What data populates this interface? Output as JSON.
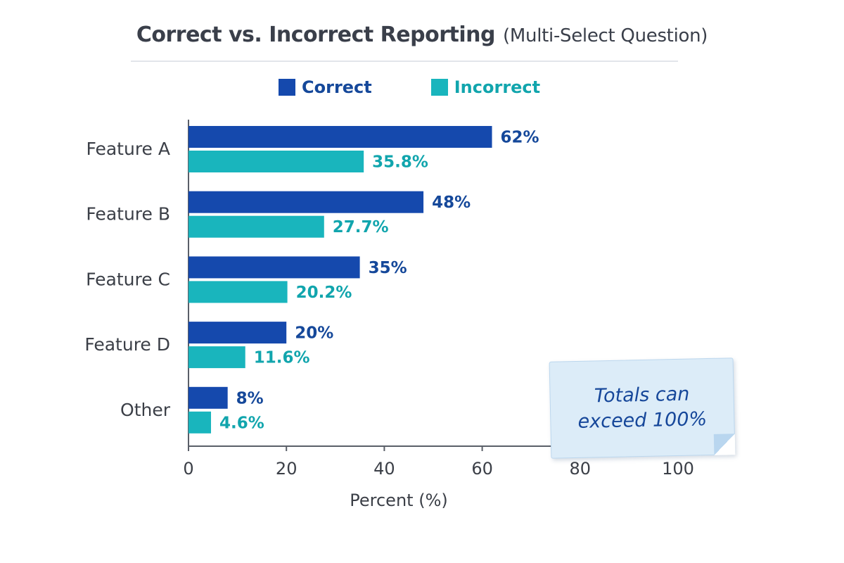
{
  "chart_data": {
    "type": "bar",
    "orientation": "horizontal",
    "title": "Correct vs. Incorrect Reporting",
    "subtitle": "(Multi-Select Question)",
    "xlabel": "Percent (%)",
    "ylabel": "",
    "xlim": [
      0,
      100
    ],
    "x_ticks": [
      "0",
      "20",
      "40",
      "60",
      "80",
      "100"
    ],
    "legend_position": "top",
    "grid": false,
    "categories": [
      "Feature A",
      "Feature B",
      "Feature C",
      "Feature D",
      "Other"
    ],
    "series": [
      {
        "name": "Correct",
        "color": "#1549ad",
        "values": [
          62,
          48,
          35,
          20,
          8
        ],
        "labels": [
          "62%",
          "48%",
          "35%",
          "20%",
          "8%"
        ]
      },
      {
        "name": "Incorrect",
        "color": "#19b5bd",
        "values": [
          35.8,
          27.7,
          20.2,
          11.6,
          4.6
        ],
        "labels": [
          "35.8%",
          "27.7%",
          "20.2%",
          "11.6%",
          "4.6%"
        ]
      }
    ],
    "annotation": "Totals can exceed 100%"
  },
  "colors": {
    "correct_label": "#15489a",
    "incorrect_label": "#11a5ad",
    "axis": "#5a5f68",
    "note_bg": "#dcecf8",
    "note_text": "#16479a"
  }
}
